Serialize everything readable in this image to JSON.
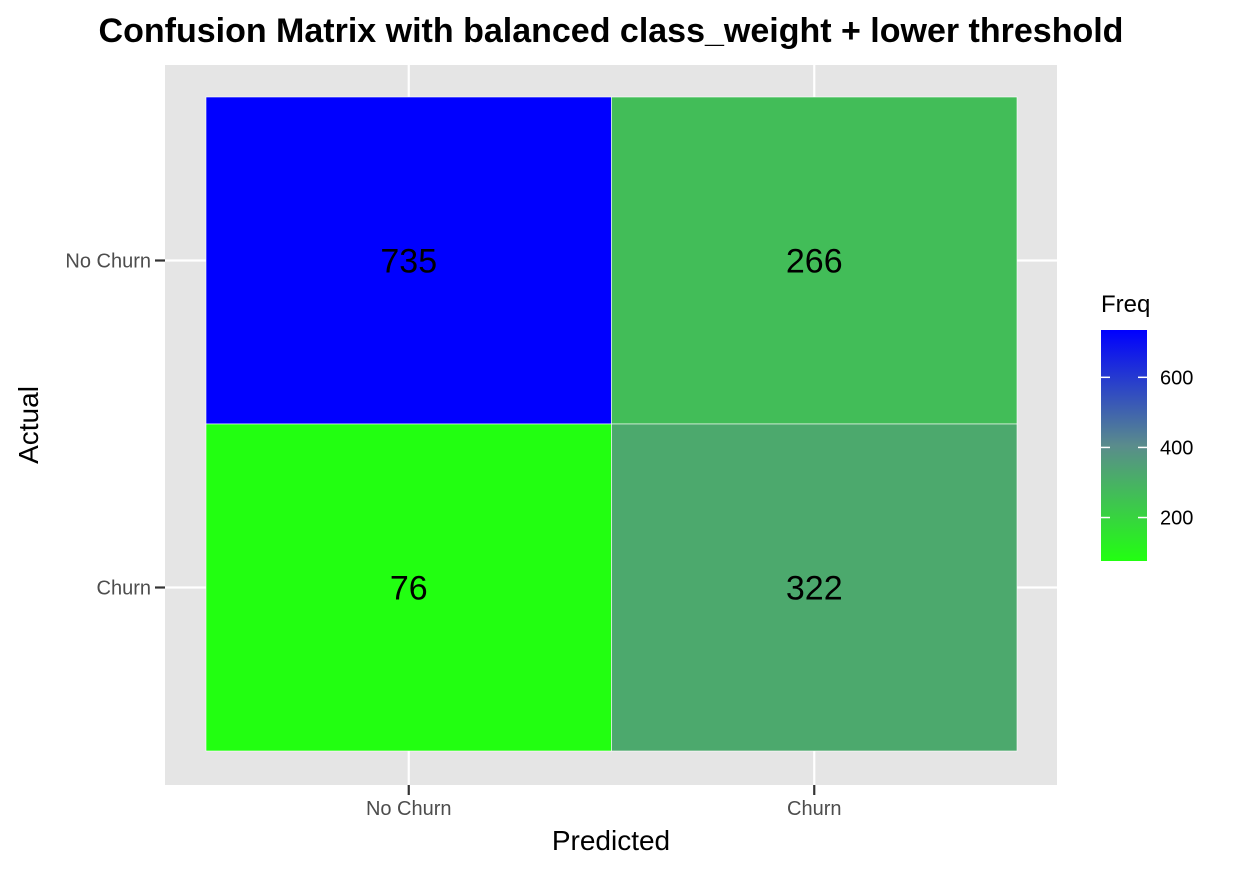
{
  "chart_data": {
    "type": "heatmap",
    "title": "Confusion Matrix with balanced class_weight + lower threshold",
    "xlabel": "Predicted",
    "ylabel": "Actual",
    "x_categories": [
      "No Churn",
      "Churn"
    ],
    "y_categories": [
      "No Churn",
      "Churn"
    ],
    "cells": [
      {
        "actual": "No Churn",
        "predicted": "No Churn",
        "value": 735
      },
      {
        "actual": "No Churn",
        "predicted": "Churn",
        "value": 266
      },
      {
        "actual": "Churn",
        "predicted": "No Churn",
        "value": 76
      },
      {
        "actual": "Churn",
        "predicted": "Churn",
        "value": 322
      }
    ],
    "legend": {
      "title": "Freq",
      "ticks": [
        200,
        400,
        600
      ],
      "range": [
        76,
        735
      ],
      "low_color": "#22ff11",
      "high_color": "#0000ff"
    },
    "panel_background": "#e5e5e5",
    "grid": true,
    "legend_position": "right"
  }
}
